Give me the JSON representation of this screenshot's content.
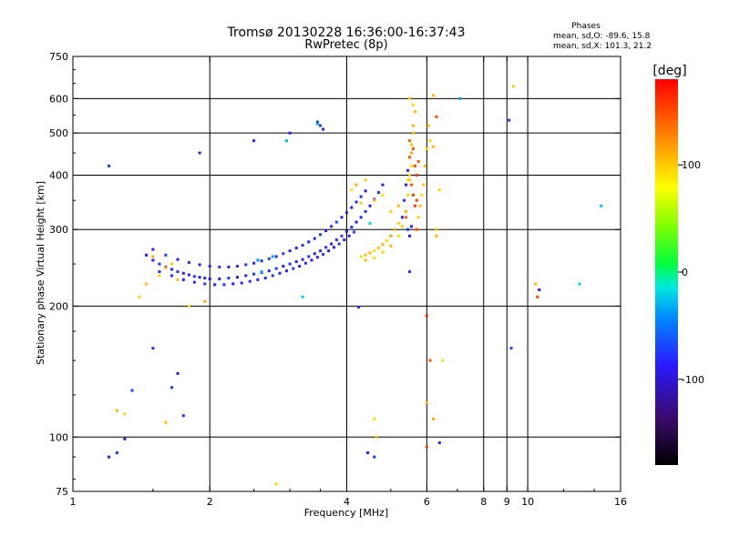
{
  "chart_data": {
    "type": "scatter",
    "title": "Tromsø 20130228 16:36:00-16:37:43",
    "subtitle": "RwPretec (8p)",
    "xlabel": "Frequency [MHz]",
    "ylabel": "Stationary phase Virtual Height [km]",
    "x_scale": "log",
    "y_scale": "log",
    "xlim": [
      1,
      16
    ],
    "ylim": [
      75,
      750
    ],
    "x_ticks": [
      1,
      2,
      4,
      6,
      8,
      9,
      10,
      16
    ],
    "x_tick_labels": [
      "1",
      "2",
      "4",
      "6",
      "8",
      "9",
      "10",
      "16"
    ],
    "x_gridlines": [
      2,
      4,
      6,
      8,
      9,
      10
    ],
    "y_ticks": [
      75,
      100,
      200,
      300,
      400,
      500,
      600,
      750
    ],
    "y_tick_labels": [
      "75",
      "100",
      "200",
      "300",
      "400",
      "500",
      "600",
      "750"
    ],
    "y_gridlines": [
      100,
      200,
      300,
      400,
      500,
      600
    ],
    "grid": true,
    "legend": {
      "title": "Phases",
      "line_o": "mean, sd,O: -89.6, 15.8",
      "line_x": "mean, sd,X: 101.3, 21.2"
    },
    "colorbar": {
      "label": "[deg]",
      "range": [
        -180,
        180
      ],
      "ticks": [
        100,
        0,
        -100
      ],
      "tick_labels": [
        "100",
        "0",
        "-100"
      ]
    },
    "series": [
      {
        "name": "O-mode trace (blue, ~-90 deg)",
        "phase": -90,
        "points": [
          [
            1.45,
            262
          ],
          [
            1.5,
            255
          ],
          [
            1.55,
            250
          ],
          [
            1.6,
            246
          ],
          [
            1.65,
            243
          ],
          [
            1.7,
            240
          ],
          [
            1.75,
            238
          ],
          [
            1.8,
            236
          ],
          [
            1.85,
            234
          ],
          [
            1.9,
            233
          ],
          [
            1.95,
            232
          ],
          [
            2.0,
            231
          ],
          [
            2.1,
            231
          ],
          [
            2.2,
            232
          ],
          [
            2.3,
            233
          ],
          [
            2.4,
            235
          ],
          [
            2.5,
            237
          ],
          [
            2.6,
            239
          ],
          [
            2.7,
            241
          ],
          [
            2.8,
            244
          ],
          [
            2.9,
            247
          ],
          [
            3.0,
            250
          ],
          [
            3.1,
            253
          ],
          [
            3.2,
            256
          ],
          [
            3.3,
            260
          ],
          [
            3.4,
            264
          ],
          [
            3.5,
            268
          ],
          [
            3.6,
            273
          ],
          [
            3.7,
            278
          ],
          [
            3.8,
            284
          ],
          [
            3.9,
            290
          ],
          [
            4.0,
            297
          ],
          [
            4.1,
            304
          ],
          [
            4.2,
            312
          ],
          [
            4.3,
            320
          ],
          [
            4.4,
            330
          ],
          [
            4.5,
            340
          ],
          [
            4.6,
            352
          ],
          [
            4.7,
            365
          ],
          [
            4.8,
            380
          ],
          [
            1.5,
            270
          ],
          [
            1.6,
            262
          ],
          [
            1.7,
            256
          ],
          [
            1.8,
            252
          ],
          [
            1.9,
            249
          ],
          [
            2.0,
            247
          ],
          [
            2.1,
            246
          ],
          [
            2.2,
            246
          ],
          [
            2.3,
            247
          ],
          [
            2.4,
            249
          ],
          [
            2.5,
            251
          ],
          [
            2.6,
            254
          ],
          [
            2.7,
            257
          ],
          [
            2.8,
            260
          ],
          [
            2.9,
            264
          ],
          [
            3.0,
            268
          ],
          [
            3.1,
            272
          ],
          [
            3.2,
            276
          ],
          [
            3.3,
            281
          ],
          [
            3.4,
            286
          ],
          [
            3.5,
            292
          ],
          [
            3.6,
            298
          ],
          [
            3.7,
            305
          ],
          [
            3.8,
            312
          ],
          [
            3.9,
            320
          ],
          [
            4.0,
            328
          ],
          [
            4.1,
            337
          ],
          [
            4.2,
            347
          ],
          [
            4.3,
            357
          ],
          [
            4.4,
            368
          ],
          [
            1.55,
            240
          ],
          [
            1.65,
            235
          ],
          [
            1.75,
            230
          ],
          [
            1.85,
            227
          ],
          [
            1.95,
            225
          ],
          [
            2.05,
            224
          ],
          [
            2.15,
            224
          ],
          [
            2.25,
            225
          ],
          [
            2.35,
            226
          ],
          [
            2.45,
            228
          ],
          [
            2.55,
            230
          ],
          [
            2.65,
            232
          ],
          [
            2.75,
            235
          ],
          [
            2.85,
            238
          ],
          [
            2.95,
            241
          ],
          [
            3.05,
            244
          ],
          [
            3.15,
            247
          ],
          [
            3.25,
            251
          ],
          [
            3.35,
            255
          ],
          [
            3.45,
            259
          ],
          [
            3.55,
            263
          ],
          [
            3.65,
            268
          ],
          [
            3.75,
            273
          ],
          [
            3.85,
            278
          ],
          [
            3.95,
            284
          ],
          [
            4.05,
            290
          ],
          [
            4.15,
            296
          ],
          [
            5.3,
            320
          ],
          [
            5.35,
            350
          ],
          [
            5.4,
            380
          ],
          [
            5.45,
            410
          ],
          [
            5.5,
            440
          ],
          [
            5.55,
            470
          ],
          [
            5.6,
            500
          ],
          [
            5.45,
            300
          ],
          [
            5.5,
            290
          ],
          [
            5.55,
            305
          ],
          [
            3.5,
            520
          ],
          [
            3.55,
            510
          ],
          [
            3.45,
            530
          ],
          [
            2.5,
            480
          ],
          [
            1.9,
            450
          ],
          [
            1.2,
            420
          ],
          [
            3.0,
            500
          ],
          [
            1.5,
            160
          ],
          [
            1.65,
            130
          ],
          [
            1.7,
            140
          ],
          [
            1.75,
            112
          ],
          [
            1.35,
            128
          ],
          [
            1.2,
            90
          ],
          [
            1.25,
            92
          ],
          [
            1.3,
            99
          ],
          [
            4.25,
            199
          ],
          [
            4.6,
            90
          ],
          [
            4.45,
            92
          ],
          [
            6.4,
            97
          ],
          [
            5.5,
            240
          ],
          [
            5.0,
            290
          ],
          [
            9.1,
            535
          ],
          [
            9.2,
            160
          ],
          [
            10.6,
            218
          ]
        ]
      },
      {
        "name": "X-mode trace (yellow/orange, ~+100 deg)",
        "phase": 100,
        "points": [
          [
            4.3,
            260
          ],
          [
            4.4,
            262
          ],
          [
            4.5,
            265
          ],
          [
            4.6,
            268
          ],
          [
            4.7,
            272
          ],
          [
            4.8,
            277
          ],
          [
            4.9,
            283
          ],
          [
            5.0,
            290
          ],
          [
            5.1,
            300
          ],
          [
            5.2,
            310
          ],
          [
            4.4,
            255
          ],
          [
            4.6,
            258
          ],
          [
            4.8,
            266
          ],
          [
            5.0,
            275
          ],
          [
            5.2,
            290
          ],
          [
            5.3,
            305
          ],
          [
            5.4,
            330
          ],
          [
            5.45,
            360
          ],
          [
            5.5,
            400
          ],
          [
            5.55,
            450
          ],
          [
            5.6,
            500
          ],
          [
            5.65,
            560
          ],
          [
            5.7,
            300
          ],
          [
            5.75,
            320
          ],
          [
            5.8,
            340
          ],
          [
            5.85,
            360
          ],
          [
            5.9,
            380
          ],
          [
            5.95,
            420
          ],
          [
            6.0,
            460
          ],
          [
            6.05,
            520
          ],
          [
            4.2,
            380
          ],
          [
            4.4,
            390
          ],
          [
            4.6,
            350
          ],
          [
            4.8,
            360
          ],
          [
            5.0,
            330
          ],
          [
            5.2,
            340
          ],
          [
            4.1,
            370
          ],
          [
            4.3,
            345
          ],
          [
            1.5,
            260
          ],
          [
            1.55,
            235
          ],
          [
            1.45,
            225
          ],
          [
            1.6,
            245
          ],
          [
            1.4,
            210
          ],
          [
            1.7,
            230
          ],
          [
            1.8,
            200
          ],
          [
            1.65,
            250
          ],
          [
            6.2,
            610
          ],
          [
            6.4,
            370
          ],
          [
            6.3,
            300
          ],
          [
            6.3,
            290
          ],
          [
            6.5,
            150
          ],
          [
            6.0,
            120
          ],
          [
            6.2,
            110
          ],
          [
            6.1,
            480
          ],
          [
            6.2,
            465
          ],
          [
            5.55,
            420
          ],
          [
            5.5,
            390
          ],
          [
            5.6,
            520
          ],
          [
            5.6,
            580
          ],
          [
            5.5,
            600
          ],
          [
            1.25,
            115
          ],
          [
            1.3,
            113
          ],
          [
            1.6,
            108
          ],
          [
            1.95,
            205
          ],
          [
            2.8,
            78
          ],
          [
            4.65,
            100
          ],
          [
            4.6,
            110
          ],
          [
            9.3,
            640
          ],
          [
            10.4,
            225
          ],
          [
            5.45,
            390
          ],
          [
            5.55,
            470
          ]
        ]
      },
      {
        "name": "scattered red echoes (~+150 deg)",
        "phase": 150,
        "points": [
          [
            5.5,
            440
          ],
          [
            5.6,
            460
          ],
          [
            5.7,
            400
          ],
          [
            5.55,
            380
          ],
          [
            5.65,
            420
          ],
          [
            5.6,
            360
          ],
          [
            5.75,
            430
          ],
          [
            5.7,
            350
          ],
          [
            6.0,
            190
          ],
          [
            6.1,
            150
          ],
          [
            6.0,
            95
          ],
          [
            5.5,
            480
          ],
          [
            10.5,
            210
          ],
          [
            6.3,
            545
          ],
          [
            5.4,
            320
          ],
          [
            5.7,
            300
          ],
          [
            5.65,
            340
          ]
        ]
      },
      {
        "name": "cyan/teal echoes (~-30 deg)",
        "phase": -30,
        "points": [
          [
            2.55,
            255
          ],
          [
            2.6,
            240
          ],
          [
            3.2,
            210
          ],
          [
            3.45,
            525
          ],
          [
            2.95,
            480
          ],
          [
            13.0,
            225
          ],
          [
            7.1,
            600
          ],
          [
            14.5,
            340
          ],
          [
            4.5,
            310
          ],
          [
            2.75,
            260
          ]
        ]
      }
    ]
  }
}
